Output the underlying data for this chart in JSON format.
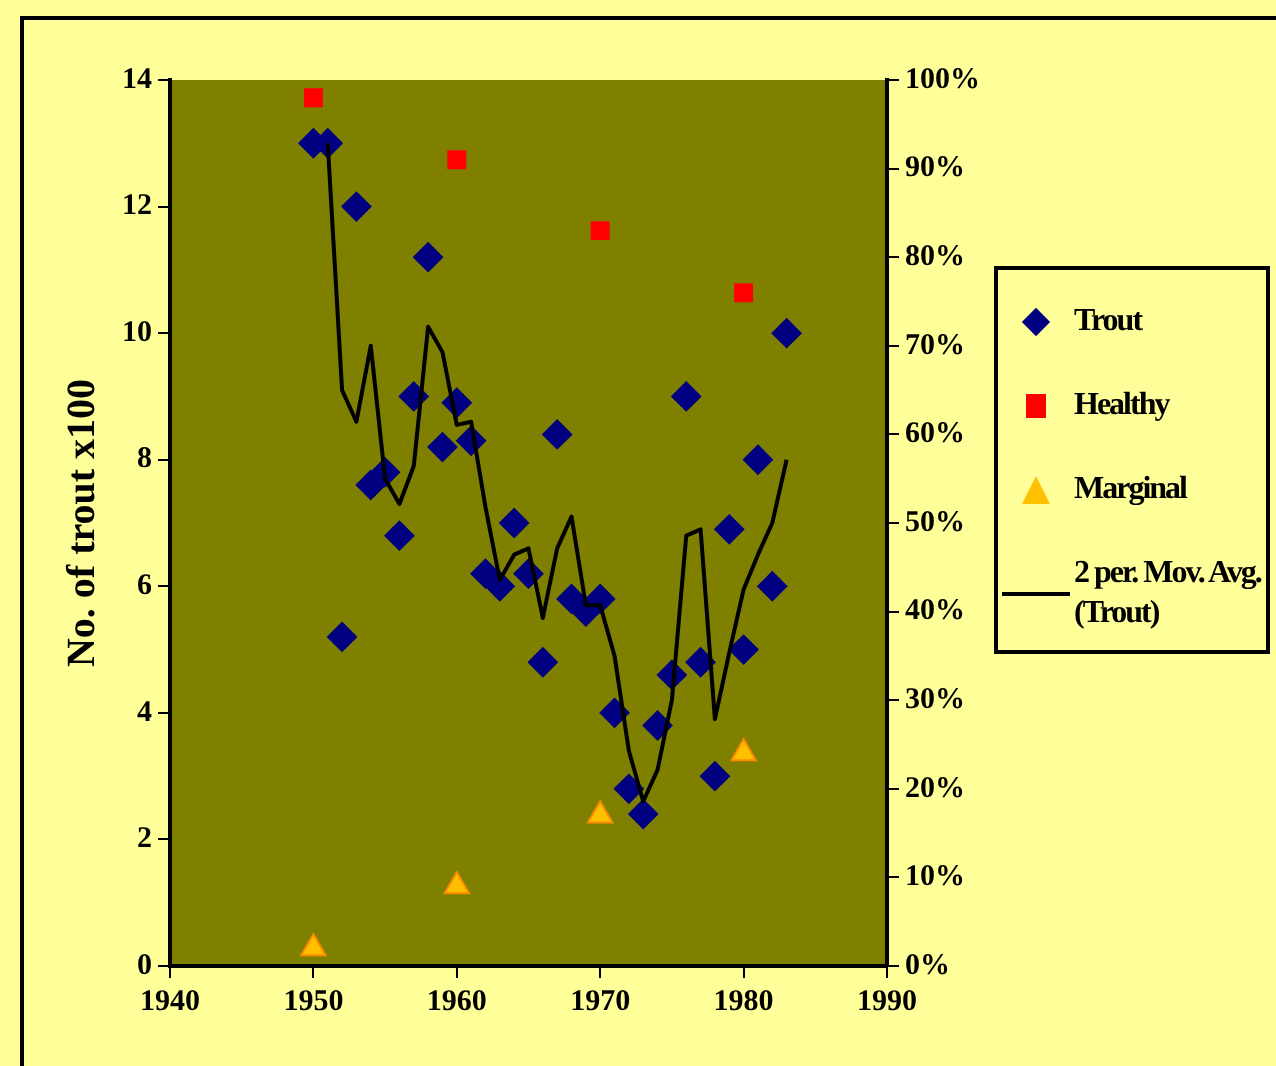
{
  "chart_data": {
    "type": "scatter",
    "ylabel": "No. of trout x100",
    "xlim": [
      1940,
      1990
    ],
    "xticks": [
      1940,
      1950,
      1960,
      1970,
      1980,
      1990
    ],
    "ylim": [
      0,
      14
    ],
    "yticks": [
      0,
      2,
      4,
      6,
      8,
      10,
      12,
      14
    ],
    "y2lim": [
      0,
      100
    ],
    "y2ticks": [
      {
        "value": 0,
        "label": "0%"
      },
      {
        "value": 10,
        "label": "10%"
      },
      {
        "value": 20,
        "label": "20%"
      },
      {
        "value": 30,
        "label": "30%"
      },
      {
        "value": 40,
        "label": "40%"
      },
      {
        "value": 50,
        "label": "50%"
      },
      {
        "value": 60,
        "label": "60%"
      },
      {
        "value": 70,
        "label": "70%"
      },
      {
        "value": 80,
        "label": "80%"
      },
      {
        "value": 90,
        "label": "90%"
      },
      {
        "value": 100,
        "label": "100%"
      }
    ],
    "grid": false,
    "legend": "right",
    "series": [
      {
        "name": "Trout",
        "marker": "diamond",
        "color": "#000080",
        "x": [
          1950,
          1951,
          1952,
          1953,
          1954,
          1955,
          1956,
          1957,
          1958,
          1959,
          1960,
          1961,
          1962,
          1963,
          1964,
          1965,
          1966,
          1967,
          1968,
          1969,
          1970,
          1971,
          1972,
          1973,
          1974,
          1975,
          1976,
          1977,
          1978,
          1979,
          1980,
          1981,
          1982,
          1983
        ],
        "values": [
          13,
          13,
          5.2,
          12,
          7.6,
          7.8,
          6.8,
          9.0,
          11.2,
          8.2,
          8.9,
          8.3,
          6.2,
          6.0,
          7.0,
          6.2,
          4.8,
          8.4,
          5.8,
          5.6,
          5.8,
          4.0,
          2.8,
          2.4,
          3.8,
          4.6,
          9.0,
          4.8,
          3.0,
          6.9,
          5.0,
          8.0,
          6.0,
          10.0
        ]
      },
      {
        "name": "Healthy",
        "marker": "square",
        "axis": "y2",
        "color": "#ff0000",
        "x": [
          1950,
          1960,
          1970,
          1980
        ],
        "values": [
          98,
          91,
          83,
          76
        ]
      },
      {
        "name": "Marginal",
        "marker": "triangle",
        "axis": "y2",
        "color": "#ffc000",
        "x": [
          1950,
          1960,
          1970,
          1980
        ],
        "values": [
          2,
          9,
          17,
          24
        ]
      },
      {
        "name": "2 per. Mov. Avg. (Trout)",
        "type": "line",
        "marker": "none",
        "line_style": "solid",
        "color": "#000000",
        "x": [
          1951,
          1952,
          1953,
          1954,
          1955,
          1956,
          1957,
          1958,
          1959,
          1960,
          1961,
          1962,
          1963,
          1964,
          1965,
          1966,
          1967,
          1968,
          1969,
          1970,
          1971,
          1972,
          1973,
          1974,
          1975,
          1976,
          1977,
          1978,
          1979,
          1980,
          1981,
          1982,
          1983
        ],
        "values": [
          13,
          9.1,
          8.6,
          9.8,
          7.7,
          7.3,
          7.9,
          10.1,
          9.7,
          8.55,
          8.6,
          7.25,
          6.1,
          6.5,
          6.6,
          5.5,
          6.6,
          7.1,
          5.7,
          5.7,
          4.9,
          3.4,
          2.6,
          3.1,
          4.2,
          6.8,
          6.9,
          3.9,
          4.95,
          5.95,
          6.5,
          7.0,
          8.0
        ]
      }
    ]
  }
}
